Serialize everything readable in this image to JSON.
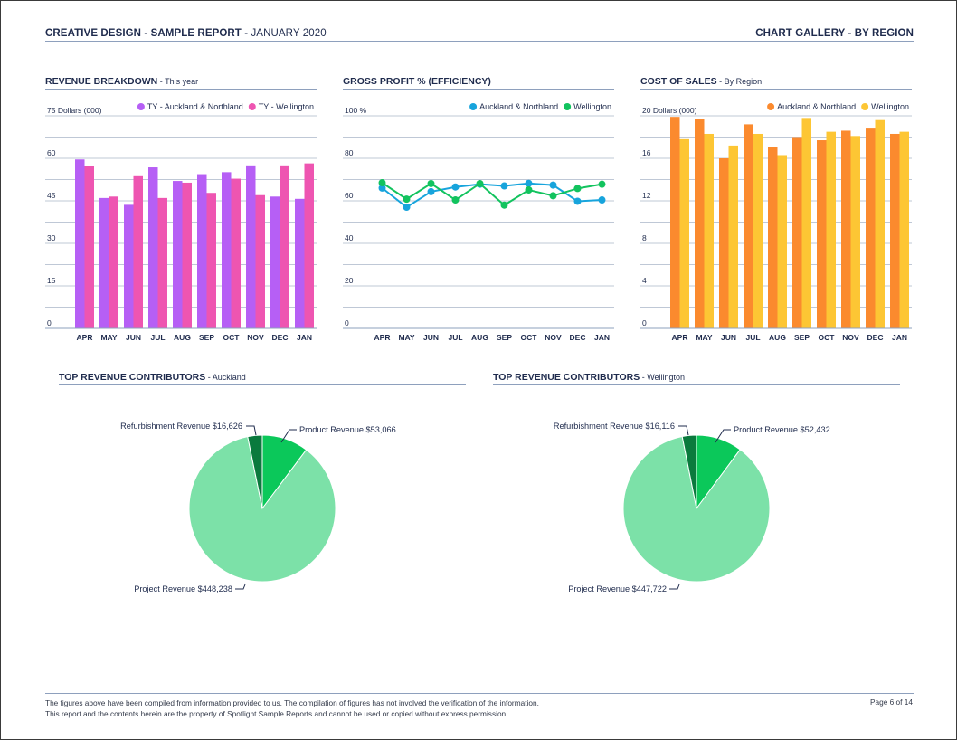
{
  "header": {
    "report_title": "CREATIVE DESIGN - SAMPLE REPORT",
    "report_date": " - JANUARY 2020",
    "section": "CHART GALLERY - BY REGION"
  },
  "footer": {
    "line1": "The figures above have been compiled from information provided to us. The compilation of figures has not involved the verification of the information.",
    "line2": "This report and the contents herein are the property of Spotlight Sample Reports and cannot be used or copied without express permission.",
    "page": "Page 6 of 14"
  },
  "charts": {
    "revenue": {
      "title": "REVENUE BREAKDOWN",
      "subtitle": " - This year"
    },
    "gross": {
      "title": "GROSS PROFIT % (EFFICIENCY)",
      "subtitle": ""
    },
    "cost": {
      "title": "COST OF SALES",
      "subtitle": " - By Region"
    },
    "pie_auckland": {
      "title": "TOP REVENUE CONTRIBUTORS",
      "subtitle": " - Auckland"
    },
    "pie_wellington": {
      "title": "TOP REVENUE CONTRIBUTORS",
      "subtitle": " - Wellington"
    }
  },
  "chart_data": [
    {
      "id": "revenue",
      "type": "bar",
      "categories": [
        "APR",
        "MAY",
        "JUN",
        "JUL",
        "AUG",
        "SEP",
        "OCT",
        "NOV",
        "DEC",
        "JAN"
      ],
      "ylabel": "75 Dollars (000)",
      "ylim": [
        0,
        75
      ],
      "yticks": [
        0,
        15,
        30,
        45,
        60
      ],
      "yticks_labels": [
        "0",
        "15",
        "30",
        "45",
        "60"
      ],
      "grid": true,
      "legend": "top-right",
      "series": [
        {
          "name": "TY - Auckland & Northland",
          "color": "#b65ff5",
          "values": [
            59.6,
            46,
            43.6,
            56.8,
            52,
            54.4,
            55.1,
            57.5,
            46.5,
            45.7
          ]
        },
        {
          "name": "TY - Wellington",
          "color": "#ee55b1",
          "values": [
            57.2,
            46.5,
            54,
            46,
            51.4,
            47.8,
            52.8,
            47,
            57.5,
            58.2
          ]
        }
      ]
    },
    {
      "id": "gross",
      "type": "line",
      "categories": [
        "APR",
        "MAY",
        "JUN",
        "JUL",
        "AUG",
        "SEP",
        "OCT",
        "NOV",
        "DEC",
        "JAN"
      ],
      "ylabel": "100 %",
      "ylim": [
        0,
        100
      ],
      "yticks": [
        0,
        20,
        40,
        60,
        80
      ],
      "yticks_labels": [
        "0",
        "20",
        "40",
        "60",
        "80"
      ],
      "grid": true,
      "legend": "top-right",
      "series": [
        {
          "name": "Auckland & Northland",
          "color": "#17a4dc",
          "values": [
            66,
            57,
            64.3,
            66.5,
            67.8,
            67,
            68.2,
            67.4,
            59.8,
            60.4
          ]
        },
        {
          "name": "Wellington",
          "color": "#12c35e",
          "values": [
            68.5,
            60.8,
            68.1,
            60.4,
            68.1,
            58,
            65.1,
            62.4,
            65.8,
            67.8
          ]
        }
      ]
    },
    {
      "id": "cost",
      "type": "bar",
      "categories": [
        "APR",
        "MAY",
        "JUN",
        "JUL",
        "AUG",
        "SEP",
        "OCT",
        "NOV",
        "DEC",
        "JAN"
      ],
      "ylabel": "20 Dollars (000)",
      "ylim": [
        0,
        20
      ],
      "yticks": [
        0,
        4,
        8,
        12,
        16
      ],
      "yticks_labels": [
        "0",
        "4",
        "8",
        "12",
        "16"
      ],
      "grid": true,
      "legend": "top-right",
      "series": [
        {
          "name": "Auckland & Northland",
          "color": "#fb8a2e",
          "values": [
            19.9,
            19.7,
            16,
            19.2,
            17.1,
            18,
            17.7,
            18.6,
            18.8,
            18.3
          ]
        },
        {
          "name": "Wellington",
          "color": "#fdc634",
          "values": [
            17.8,
            18.3,
            17.2,
            18.3,
            16.3,
            19.8,
            18.5,
            18.1,
            19.6,
            18.5
          ]
        }
      ]
    },
    {
      "id": "pie_auckland",
      "type": "pie",
      "slices": [
        {
          "label": "Product Revenue $53,066",
          "value": 53066,
          "color": "#0bc85a"
        },
        {
          "label": "Project Revenue $448,238",
          "value": 448238,
          "color": "#7ce1a8"
        },
        {
          "label": "Refurbishment Revenue $16,626",
          "value": 16626,
          "color": "#0a7a3d"
        }
      ]
    },
    {
      "id": "pie_wellington",
      "type": "pie",
      "slices": [
        {
          "label": "Product Revenue $52,432",
          "value": 52432,
          "color": "#0bc85a"
        },
        {
          "label": "Project Revenue $447,722",
          "value": 447722,
          "color": "#7ce1a8"
        },
        {
          "label": "Refurbishment Revenue $16,116",
          "value": 16116,
          "color": "#0a7a3d"
        }
      ]
    }
  ]
}
